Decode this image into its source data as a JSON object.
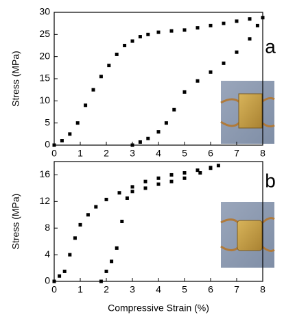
{
  "chart_data": [
    {
      "type": "scatter",
      "ylabel": "Stress (MPa)",
      "annotation": "a",
      "xlim": [
        0,
        8
      ],
      "xticks": [
        0,
        1,
        2,
        3,
        4,
        5,
        6,
        7,
        8
      ],
      "ylim": [
        0,
        30
      ],
      "yticks": [
        0,
        5,
        10,
        15,
        20,
        25,
        30
      ],
      "series": [
        {
          "color": "#000000",
          "x": [
            0,
            0.3,
            0.6,
            0.9,
            1.2,
            1.5,
            1.8,
            2.1,
            2.4,
            2.7,
            3.0,
            3.3,
            3.6,
            4.0,
            4.5,
            5.0,
            5.5,
            6.0,
            6.5,
            7.0,
            7.5,
            8.0
          ],
          "values": [
            0,
            1,
            2.5,
            5,
            9,
            12.5,
            15.5,
            18,
            20.5,
            22.5,
            23.5,
            24.5,
            25,
            25.5,
            25.8,
            26,
            26.5,
            27,
            27.5,
            28,
            28.5,
            28.8
          ]
        },
        {
          "color": "#000000",
          "x": [
            7.8,
            7.5,
            7.0,
            6.5,
            6.0,
            5.5,
            5.0,
            4.6,
            4.3,
            4.0,
            3.6,
            3.3,
            3.0
          ],
          "values": [
            27,
            24,
            21,
            18.5,
            16.5,
            14.5,
            12,
            8,
            5,
            3,
            1.5,
            0.7,
            0
          ]
        }
      ]
    },
    {
      "type": "scatter",
      "ylabel": "Stress (MPa)",
      "xlabel": "Compressive Strain (%)",
      "annotation": "b",
      "xlim": [
        0,
        8
      ],
      "xticks": [
        0,
        1,
        2,
        3,
        4,
        5,
        6,
        7,
        8
      ],
      "ylim": [
        0,
        18
      ],
      "yticks": [
        0,
        4,
        8,
        12,
        16
      ],
      "series": [
        {
          "color": "#000000",
          "x": [
            0,
            0.2,
            0.4,
            0.6,
            0.8,
            1.0,
            1.3,
            1.6,
            2.0,
            2.5,
            3.0,
            3.5,
            4.0,
            4.5,
            5.0,
            5.5,
            6.0,
            6.3
          ],
          "values": [
            0,
            0.8,
            1.5,
            4,
            6.5,
            8.5,
            10,
            11.2,
            12.3,
            13.3,
            14.2,
            15,
            15.5,
            16,
            16.3,
            16.7,
            17.1,
            17.4
          ]
        },
        {
          "color": "#000000",
          "x": [
            6.0,
            5.6,
            5.0,
            4.5,
            4.0,
            3.5,
            3.0,
            2.8,
            2.6,
            2.4,
            2.2,
            2.0,
            1.8
          ],
          "values": [
            17,
            16.3,
            15.5,
            15,
            14.6,
            14,
            13.5,
            12.5,
            9,
            5,
            3,
            1.5,
            0
          ]
        }
      ]
    }
  ]
}
